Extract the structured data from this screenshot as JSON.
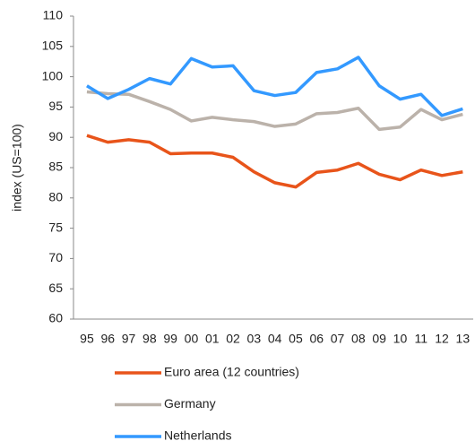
{
  "chart_data": {
    "type": "line",
    "y_label": "index (US=100)",
    "categories": [
      "95",
      "96",
      "97",
      "98",
      "99",
      "00",
      "01",
      "02",
      "03",
      "04",
      "05",
      "06",
      "07",
      "08",
      "09",
      "10",
      "11",
      "12",
      "13"
    ],
    "series": [
      {
        "name": "Euro area (12 countries)",
        "color": "#e8541a",
        "values": [
          90.3,
          89.2,
          89.6,
          89.2,
          87.3,
          87.4,
          87.4,
          86.7,
          84.3,
          82.5,
          81.8,
          84.2,
          84.6,
          85.7,
          83.9,
          83.0,
          84.6,
          83.7,
          84.3
        ]
      },
      {
        "name": "Germany",
        "color": "#bbb2aa",
        "values": [
          97.5,
          97.2,
          97.1,
          95.9,
          94.6,
          92.7,
          93.3,
          92.9,
          92.6,
          91.8,
          92.2,
          93.9,
          94.1,
          94.8,
          91.3,
          91.7,
          94.6,
          92.9,
          93.8
        ]
      },
      {
        "name": "Netherlands",
        "color": "#3399ff",
        "values": [
          98.5,
          96.4,
          97.9,
          99.7,
          98.8,
          103.0,
          101.6,
          101.8,
          97.7,
          96.9,
          97.4,
          100.7,
          101.3,
          103.2,
          98.5,
          96.3,
          97.1,
          93.6,
          94.7
        ]
      }
    ],
    "ylim": [
      60,
      110
    ],
    "yticks": [
      60,
      65,
      70,
      75,
      80,
      85,
      90,
      95,
      100,
      105,
      110
    ],
    "grid": false
  }
}
